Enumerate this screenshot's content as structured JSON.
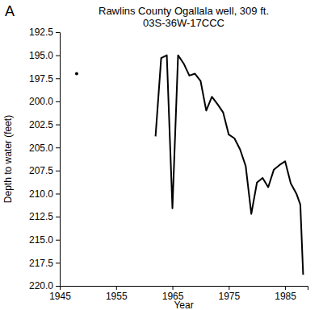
{
  "chart_data": {
    "type": "line",
    "title": "Rawlins County Ogallala well, 309 ft.",
    "subtitle": "03S-36W-17CCC",
    "annotations": [
      "A"
    ],
    "x_label": "Year",
    "y_label": "Depth to water (feet)",
    "x": [
      1948,
      1955,
      1962,
      1963,
      1964,
      1965,
      1966,
      1967,
      1968,
      1969,
      1970,
      1971,
      1972,
      1973,
      1974,
      1975,
      1976,
      1977,
      1978,
      1979,
      1980,
      1981,
      1982,
      1983,
      1984,
      1985,
      1986,
      1987,
      1987.7,
      1988.2
    ],
    "series": [
      {
        "name": "Depth to water",
        "color": "#000000",
        "marker": "circle",
        "line_style": "solid",
        "values": [
          197.0,
          null,
          203.8,
          195.3,
          195.0,
          211.6,
          195.0,
          195.9,
          197.2,
          197.0,
          197.8,
          201.0,
          199.5,
          200.3,
          201.2,
          203.6,
          204.0,
          205.2,
          207.0,
          212.2,
          208.8,
          208.3,
          209.3,
          207.4,
          206.9,
          206.5,
          208.9,
          210.0,
          211.2,
          218.8
        ]
      }
    ],
    "xlim": [
      1945,
      1989
    ],
    "xticks": [
      1945,
      1955,
      1965,
      1975,
      1985
    ],
    "ylim": [
      192.5,
      220
    ],
    "yticks": [
      192.5,
      {
        "value": 195,
        "label": "195.0"
      },
      197.5,
      {
        "value": 200,
        "label": "200.0"
      },
      202.5,
      {
        "value": 205,
        "label": "205.0"
      },
      207.5,
      {
        "value": 210,
        "label": "210.0"
      },
      212.5,
      {
        "value": 215,
        "label": "215.0"
      },
      217.5,
      {
        "value": 220,
        "label": "220.0"
      }
    ],
    "grid": false
  }
}
